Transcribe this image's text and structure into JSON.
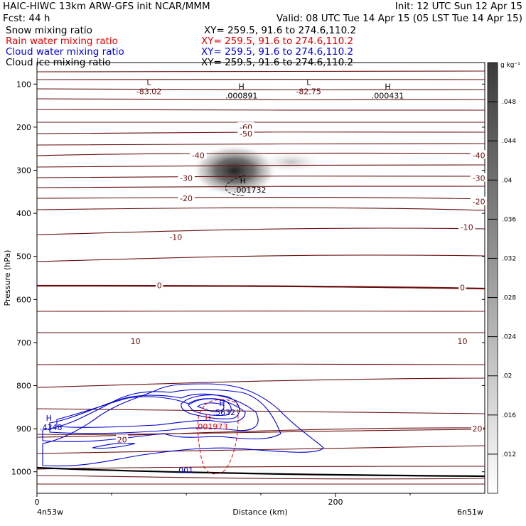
{
  "header": {
    "line1_left": "HAIC-HIWC 13km ARW-GFS init   NCAR/MMM",
    "line1_right": "Init: 12 UTC Sun 12 Apr 15",
    "line2_left": "Fcst:    44 h",
    "line2_right": "Valid: 08 UTC Tue 14 Apr 15 (05 LST Tue 14 Apr 15)",
    "fields": [
      {
        "name": "Snow mixing ratio",
        "xy": "XY= 259.5, 91.6 to 274.6,110.2",
        "color": "#000000"
      },
      {
        "name": "Rain water mixing ratio",
        "xy": "XY= 259.5, 91.6 to 274.6,110.2",
        "color": "#e00000"
      },
      {
        "name": "Cloud water mixing ratio",
        "xy": "XY= 259.5, 91.6 to 274.6,110.2",
        "color": "#0000e0"
      },
      {
        "name": "Cloud ice mixing ratio",
        "xy": "XY= 259.5, 91.6 to 274.6,110.2",
        "color": "#000000"
      }
    ]
  },
  "chart_data": {
    "type": "cross-section contour",
    "ylabel": "Pressure (hPa)",
    "xlabel": "Distance (km)",
    "x_range": [
      0,
      300
    ],
    "y_range": [
      50,
      1050
    ],
    "y_ticks": [
      100,
      200,
      300,
      400,
      500,
      600,
      700,
      800,
      900,
      1000
    ],
    "x_ticks": [
      0,
      200
    ],
    "x_end_labels": {
      "left": "4n53w",
      "right": "6n51w"
    },
    "temperature_contours": {
      "color": "#6b1010",
      "labels": [
        {
          "text": "-60",
          "x": 140,
          "p": 200
        },
        {
          "text": "-50",
          "x": 140,
          "p": 215
        },
        {
          "text": "-40",
          "x": 108,
          "p": 265
        },
        {
          "text": "-40",
          "x": 296,
          "p": 265
        },
        {
          "text": "-30",
          "x": 100,
          "p": 318
        },
        {
          "text": "-30",
          "x": 296,
          "p": 318
        },
        {
          "text": "-20",
          "x": 100,
          "p": 365
        },
        {
          "text": "-20",
          "x": 296,
          "p": 373
        },
        {
          "text": "-10",
          "x": 93,
          "p": 455
        },
        {
          "text": "-10",
          "x": 288,
          "p": 432
        },
        {
          "text": "0",
          "x": 82,
          "p": 567
        },
        {
          "text": "0",
          "x": 285,
          "p": 572
        },
        {
          "text": "10",
          "x": 66,
          "p": 697
        },
        {
          "text": "10",
          "x": 285,
          "p": 697
        },
        {
          "text": "20",
          "x": 57,
          "p": 925
        },
        {
          "text": "20",
          "x": 295,
          "p": 900
        }
      ],
      "extrema": [
        {
          "type": "L",
          "value": "-83.02",
          "x": 75,
          "p": 115
        },
        {
          "type": "H",
          "value": ".000891",
          "x": 137,
          "p": 125
        },
        {
          "type": "L",
          "value": "-82.75",
          "x": 182,
          "p": 115
        },
        {
          "type": "H",
          "value": ".000431",
          "x": 235,
          "p": 125
        }
      ]
    },
    "cloud_ice_max": {
      "type": "H",
      "value": ".001732",
      "x": 138,
      "p": 350
    },
    "cloud_water": {
      "color": "#0000d0",
      "max": [
        {
          "type": "H",
          "value": ".5632",
          "x": 124,
          "p": 860
        },
        {
          "type": "H",
          "value": ".4348",
          "x": 8,
          "p": 895
        }
      ],
      "label": ".001"
    },
    "rain_water": {
      "color": "#e00000",
      "max": {
        "type": "H",
        "value": ".001973",
        "x": 116,
        "p": 895
      }
    },
    "colorbar": {
      "unit": "g kg⁻¹",
      "ticks": [
        ".048",
        ".044",
        ".04",
        ".036",
        ".032",
        ".028",
        ".024",
        ".02",
        ".016",
        ".012"
      ],
      "range": [
        0.008,
        0.052
      ]
    }
  }
}
